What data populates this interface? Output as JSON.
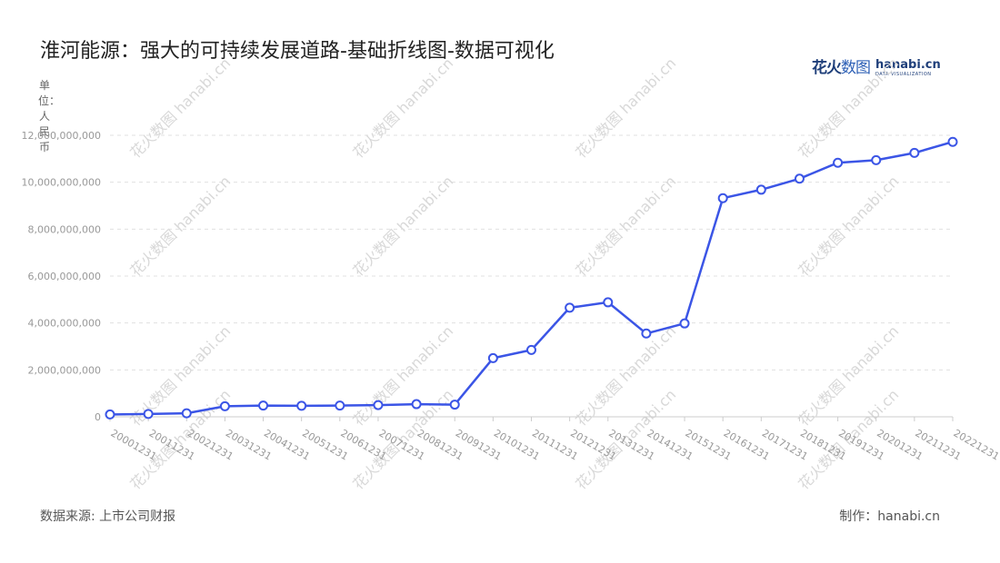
{
  "title": "淮河能源：强大的可持续发展道路-基础折线图-数据可视化",
  "unit_label": "单位：人民币",
  "logo": {
    "cn_bold": "花火",
    "cn_light": "数图",
    "domain": "hanabi.cn",
    "tagline": "DATA VISUALIZATION"
  },
  "watermark": "花火数图 hanabi.cn",
  "footer": {
    "source": "数据来源: 上市公司财报",
    "credit": "制作：hanabi.cn"
  },
  "colors": {
    "line": "#3b55e6",
    "grid": "#e0e0e0",
    "axis": "#cccccc"
  },
  "chart_data": {
    "type": "line",
    "title": "淮河能源：强大的可持续发展道路-基础折线图-数据可视化",
    "xlabel": "",
    "ylabel": "单位：人民币",
    "categories": [
      "20001231",
      "20011231",
      "20021231",
      "20031231",
      "20041231",
      "20051231",
      "20061231",
      "20071231",
      "20081231",
      "20091231",
      "20101231",
      "20111231",
      "20121231",
      "20131231",
      "20141231",
      "20151231",
      "20161231",
      "20171231",
      "20181231",
      "20191231",
      "20201231",
      "20211231",
      "20221231"
    ],
    "series": [
      {
        "values": [
          100000000,
          120000000,
          150000000,
          450000000,
          480000000,
          470000000,
          480000000,
          500000000,
          540000000,
          520000000,
          2500000000,
          2850000000,
          4650000000,
          4880000000,
          3550000000,
          3980000000,
          9320000000,
          9680000000,
          10150000000,
          10830000000,
          10940000000,
          11250000000,
          11720000000
        ]
      }
    ],
    "yticks": [
      0,
      2000000000,
      4000000000,
      6000000000,
      8000000000,
      10000000000,
      12000000000
    ],
    "ytick_labels": [
      "0",
      "2,000,000,000",
      "4,000,000,000",
      "6,000,000,000",
      "8,000,000,000",
      "10,000,000,000",
      "12,000,000,000"
    ],
    "ylim": [
      0,
      12000000000
    ],
    "grid": true,
    "legend": "none"
  }
}
